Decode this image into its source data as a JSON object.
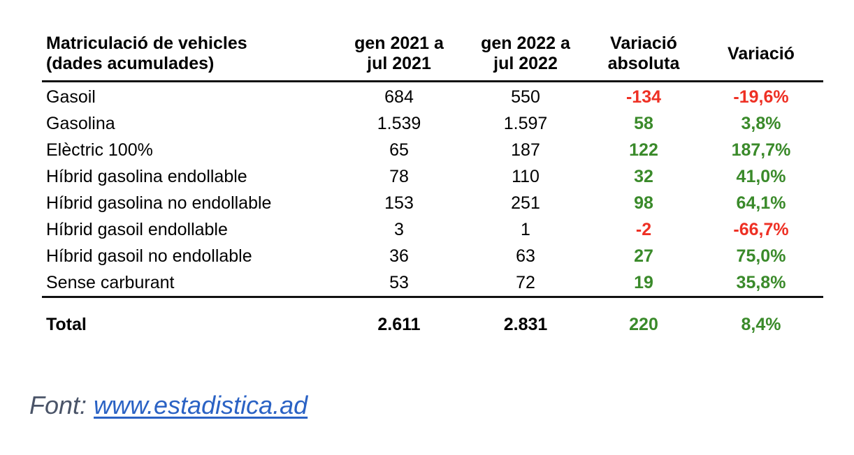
{
  "table": {
    "headers": [
      "Matriculació de vehicles\n(dades acumulades)",
      "gen 2021 a\njul 2021",
      "gen 2022 a\njul 2022",
      "Variació\nabsoluta",
      "Variació"
    ],
    "header_lines": [
      [
        "Matriculació de vehicles",
        "(dades acumulades)"
      ],
      [
        "gen 2021 a",
        "jul 2021"
      ],
      [
        "gen 2022 a",
        "jul 2022"
      ],
      [
        "Variació",
        "absoluta"
      ],
      [
        "Variació"
      ]
    ],
    "rows": [
      {
        "label": "Gasoil",
        "y2021": "684",
        "y2022": "550",
        "abs": "-134",
        "pct": "-19,6%",
        "sign": "neg"
      },
      {
        "label": "Gasolina",
        "y2021": "1.539",
        "y2022": "1.597",
        "abs": "58",
        "pct": "3,8%",
        "sign": "pos"
      },
      {
        "label": "Elèctric 100%",
        "y2021": "65",
        "y2022": "187",
        "abs": "122",
        "pct": "187,7%",
        "sign": "pos"
      },
      {
        "label": "Híbrid gasolina endollable",
        "y2021": "78",
        "y2022": "110",
        "abs": "32",
        "pct": "41,0%",
        "sign": "pos"
      },
      {
        "label": "Híbrid gasolina no endollable",
        "y2021": "153",
        "y2022": "251",
        "abs": "98",
        "pct": "64,1%",
        "sign": "pos"
      },
      {
        "label": "Híbrid gasoil endollable",
        "y2021": "3",
        "y2022": "1",
        "abs": "-2",
        "pct": "-66,7%",
        "sign": "neg"
      },
      {
        "label": "Híbrid gasoil no endollable",
        "y2021": "36",
        "y2022": "63",
        "abs": "27",
        "pct": "75,0%",
        "sign": "pos"
      },
      {
        "label": "Sense carburant",
        "y2021": "53",
        "y2022": "72",
        "abs": "19",
        "pct": "35,8%",
        "sign": "pos"
      }
    ],
    "total": {
      "label": "Total",
      "y2021": "2.611",
      "y2022": "2.831",
      "abs": "220",
      "pct": "8,4%",
      "sign": "pos"
    }
  },
  "colors": {
    "positive": "#3a8a2a",
    "negative": "#ee3024",
    "source_text": "#4a5468",
    "link": "#2a62c4"
  },
  "source": {
    "prefix": "Font: ",
    "link_text": "www.estadistica.ad"
  }
}
